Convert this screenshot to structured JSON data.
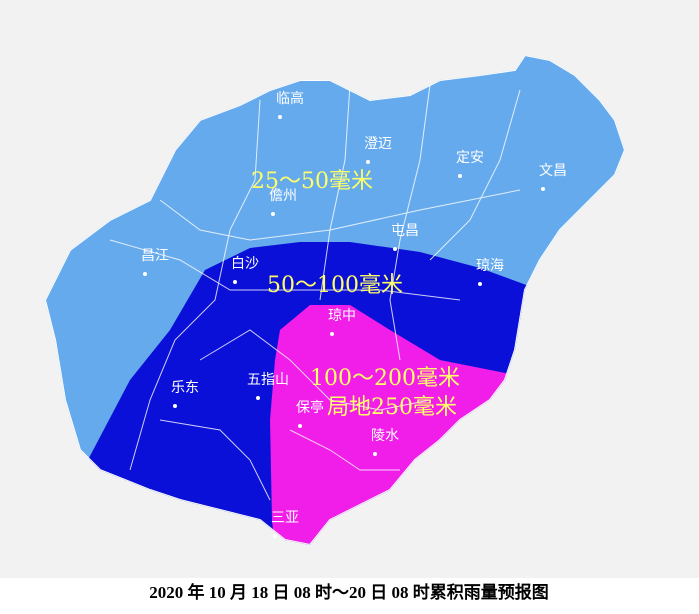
{
  "map": {
    "caption": "2020 年 10 月 18 日 08 时～20 日 08 时累积雨量预报图",
    "zones": [
      {
        "label": "25～50毫米"
      },
      {
        "label": "50～100毫米"
      },
      {
        "label": "100～200毫米"
      },
      {
        "label": "局地250毫米"
      }
    ],
    "cities": [
      "临高",
      "澄迈",
      "定安",
      "文昌",
      "儋州",
      "屯昌",
      "琼海",
      "昌江",
      "白沙",
      "琼中",
      "乐东",
      "五指山",
      "保亭",
      "陵水",
      "三亚"
    ]
  }
}
